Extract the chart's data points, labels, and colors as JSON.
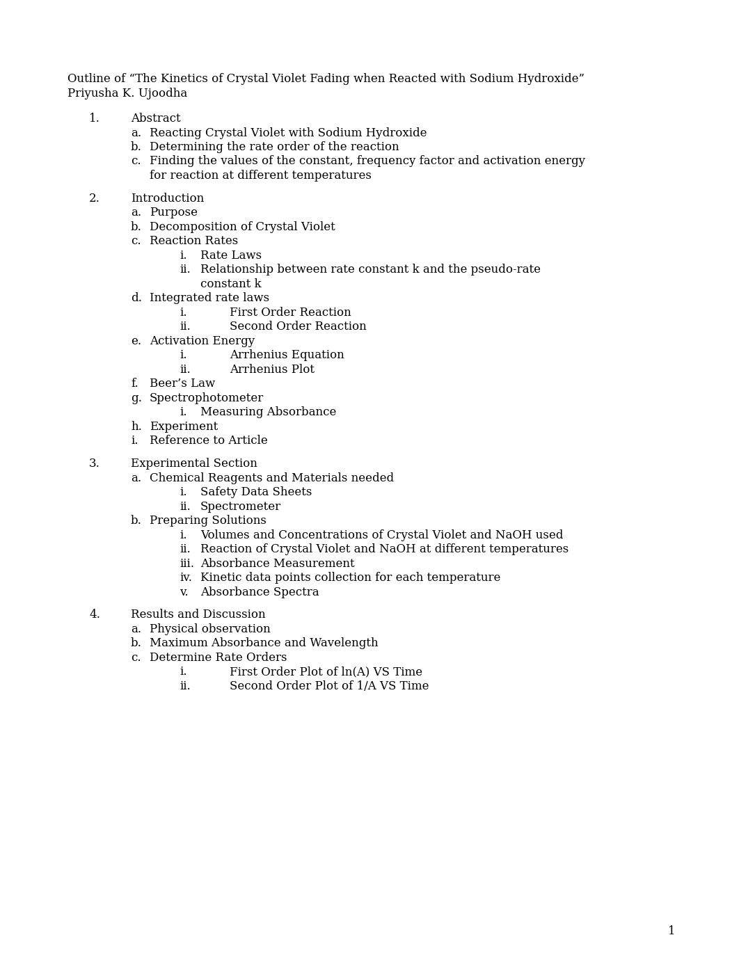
{
  "background_color": "#ffffff",
  "page_number": "1",
  "header_line1": "Outline of “The Kinetics of Crystal Violet Fading when Reacted with Sodium Hydroxide”",
  "header_line2": "Priyusha K. Ujoodha",
  "font_size": 12,
  "font_family": "DejaVu Serif",
  "text_color": "#000000",
  "content": [
    {
      "level": 1,
      "number": "1.",
      "text": "Abstract",
      "extra": null
    },
    {
      "level": 2,
      "number": "a.",
      "text": "Reacting Crystal Violet with Sodium Hydroxide",
      "extra": null
    },
    {
      "level": 2,
      "number": "b.",
      "text": "Determining the rate order of the reaction",
      "extra": null
    },
    {
      "level": 2,
      "number": "c.",
      "text": "Finding the values of the constant, frequency factor and activation energy",
      "extra": "for reaction at different temperatures"
    },
    {
      "level": 0,
      "number": "",
      "text": "",
      "extra": null
    },
    {
      "level": 1,
      "number": "2.",
      "text": "Introduction",
      "extra": null
    },
    {
      "level": 2,
      "number": "a.",
      "text": "Purpose",
      "extra": null
    },
    {
      "level": 2,
      "number": "b.",
      "text": "Decomposition of Crystal Violet",
      "extra": null
    },
    {
      "level": 2,
      "number": "c.",
      "text": "Reaction Rates",
      "extra": null
    },
    {
      "level": 3,
      "number": "i.",
      "text": "Rate Laws",
      "extra": null,
      "tab": false
    },
    {
      "level": 3,
      "number": "ii.",
      "text": "Relationship between rate constant k and the pseudo-rate",
      "extra": "constant k",
      "tab": false
    },
    {
      "level": 2,
      "number": "d.",
      "text": "Integrated rate laws",
      "extra": null
    },
    {
      "level": 3,
      "number": "i.",
      "text": "First Order Reaction",
      "extra": null,
      "tab": true
    },
    {
      "level": 3,
      "number": "ii.",
      "text": "Second Order Reaction",
      "extra": null,
      "tab": true
    },
    {
      "level": 2,
      "number": "e.",
      "text": "Activation Energy",
      "extra": null
    },
    {
      "level": 3,
      "number": "i.",
      "text": "Arrhenius Equation",
      "extra": null,
      "tab": true
    },
    {
      "level": 3,
      "number": "ii.",
      "text": "Arrhenius Plot",
      "extra": null,
      "tab": true
    },
    {
      "level": 2,
      "number": "f.",
      "text": "Beer’s Law",
      "extra": null
    },
    {
      "level": 2,
      "number": "g.",
      "text": "Spectrophotometer",
      "extra": null
    },
    {
      "level": 3,
      "number": "i.",
      "text": "Measuring Absorbance",
      "extra": null,
      "tab": false
    },
    {
      "level": 2,
      "number": "h.",
      "text": "Experiment",
      "extra": null
    },
    {
      "level": 2,
      "number": "i.",
      "text": "Reference to Article",
      "extra": null
    },
    {
      "level": 0,
      "number": "",
      "text": "",
      "extra": null
    },
    {
      "level": 1,
      "number": "3.",
      "text": "Experimental Section",
      "extra": null
    },
    {
      "level": 2,
      "number": "a.",
      "text": "Chemical Reagents and Materials needed",
      "extra": null
    },
    {
      "level": 3,
      "number": "i.",
      "text": "Safety Data Sheets",
      "extra": null,
      "tab": false
    },
    {
      "level": 3,
      "number": "ii.",
      "text": "Spectrometer",
      "extra": null,
      "tab": false
    },
    {
      "level": 2,
      "number": "b.",
      "text": "Preparing Solutions",
      "extra": null
    },
    {
      "level": 3,
      "number": "i.",
      "text": "Volumes and Concentrations of Crystal Violet and NaOH used",
      "extra": null,
      "tab": false
    },
    {
      "level": 3,
      "number": "ii.",
      "text": "Reaction of Crystal Violet and NaOH at different temperatures",
      "extra": null,
      "tab": false
    },
    {
      "level": 3,
      "number": "iii.",
      "text": "Absorbance Measurement",
      "extra": null,
      "tab": false
    },
    {
      "level": 3,
      "number": "iv.",
      "text": "Kinetic data points collection for each temperature",
      "extra": null,
      "tab": false
    },
    {
      "level": 3,
      "number": "v.",
      "text": "Absorbance Spectra",
      "extra": null,
      "tab": false
    },
    {
      "level": 0,
      "number": "",
      "text": "",
      "extra": null
    },
    {
      "level": 1,
      "number": "4.",
      "text": "Results and Discussion",
      "extra": null
    },
    {
      "level": 2,
      "number": "a.",
      "text": "Physical observation",
      "extra": null
    },
    {
      "level": 2,
      "number": "b.",
      "text": "Maximum Absorbance and Wavelength",
      "extra": null
    },
    {
      "level": 2,
      "number": "c.",
      "text": "Determine Rate Orders",
      "extra": null
    },
    {
      "level": 3,
      "number": "i.",
      "text": "First Order Plot of ln(A) VS Time",
      "extra": null,
      "tab": true
    },
    {
      "level": 3,
      "number": "ii.",
      "text": "Second Order Plot of 1/A VS Time",
      "extra": null,
      "tab": true
    }
  ]
}
